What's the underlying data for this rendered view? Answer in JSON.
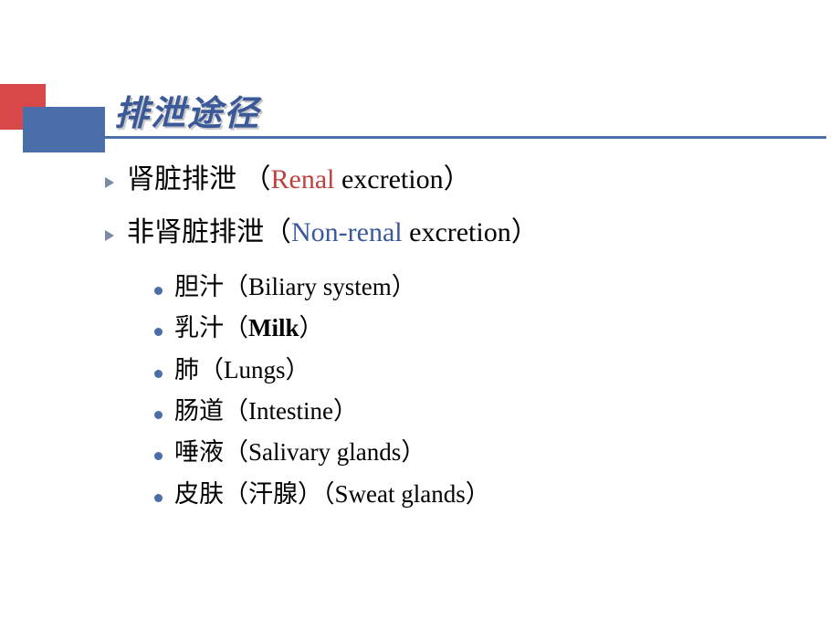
{
  "colors": {
    "background": "#ffffff",
    "title_color": "#3b5998",
    "title_shadow": "#c8c8c8",
    "red_block": "#d94848",
    "blue_block": "#4a6ea9",
    "rule": "#4a6ea9",
    "kw_red": "#c04040",
    "kw_blue": "#3b5998",
    "arrow_bullet": "#7a8aa8",
    "dot_bullet": "#4a6ea9",
    "body_text": "#000000"
  },
  "typography": {
    "title_fontsize": 38,
    "title_font": "KaiTi",
    "title_weight": "bold",
    "title_style": "italic",
    "l1_fontsize": 30,
    "l2_fontsize": 27,
    "body_font": "SimSun / Times New Roman"
  },
  "title": "排泄途径",
  "items": [
    {
      "zh": "肾脏排泄 （",
      "kw": "Renal",
      "kw_class": "kw-red",
      "post_kw": " excretion",
      "tail": "）"
    },
    {
      "zh": "非肾脏排泄（",
      "kw": "Non-renal",
      "kw_class": "kw-blue",
      "post_kw": " excretion",
      "tail": "）",
      "sub": [
        {
          "zh": "胆汁（",
          "en": "Biliary system",
          "tail": "）",
          "bold": false
        },
        {
          "zh": "乳汁（",
          "en": "Milk",
          "tail": "）",
          "bold": true
        },
        {
          "zh": "肺（",
          "en": "Lungs",
          "tail": "）",
          "bold": false
        },
        {
          "zh": "肠道（",
          "en": "Intestine",
          "tail": "）",
          "bold": false
        },
        {
          "zh": "唾液（",
          "en": "Salivary glands",
          "tail": "）",
          "bold": false
        },
        {
          "zh": "皮肤（汗腺）（",
          "en": "Sweat glands",
          "tail": "）",
          "bold": false
        }
      ]
    }
  ]
}
